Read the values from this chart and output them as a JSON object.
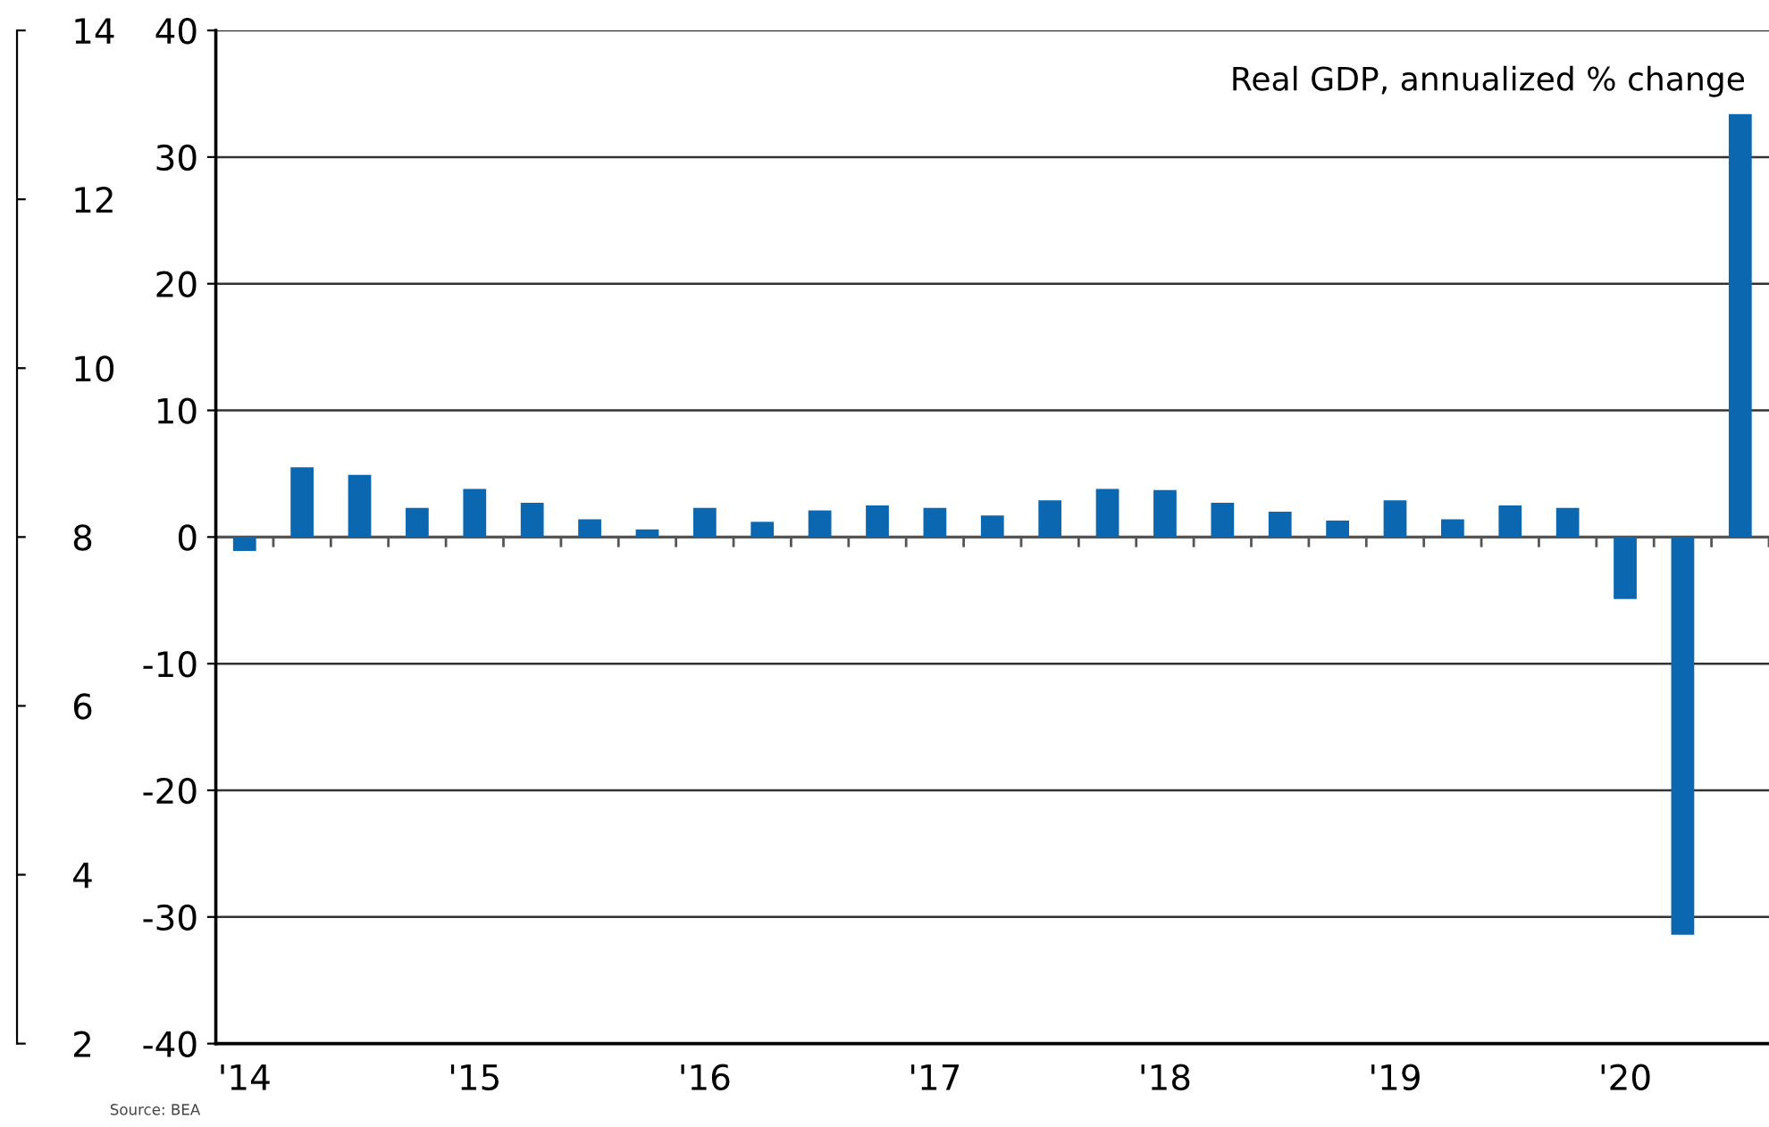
{
  "chart_data": {
    "type": "bar",
    "subtitle": "Real GDP, annualized % change",
    "categories": [
      "'14",
      null,
      null,
      null,
      "'15",
      null,
      null,
      null,
      "'16",
      null,
      null,
      null,
      "'17",
      null,
      null,
      null,
      "'18",
      null,
      null,
      null,
      "'19",
      null,
      null,
      null,
      "'20",
      null,
      null
    ],
    "values": [
      -1.1,
      5.5,
      4.9,
      2.3,
      3.8,
      2.7,
      1.4,
      0.6,
      2.3,
      1.2,
      2.1,
      2.5,
      2.3,
      1.7,
      2.9,
      3.8,
      3.7,
      2.7,
      2.0,
      1.3,
      2.9,
      1.4,
      2.5,
      2.3,
      -4.9,
      -31.4,
      33.4
    ],
    "color": "#0b68b0",
    "ylim": [
      -40,
      40
    ],
    "yticks": [
      -40,
      -30,
      -20,
      -10,
      0,
      10,
      20,
      30,
      40
    ],
    "y2lim": [
      2,
      14
    ],
    "y2ticks": [
      2,
      4,
      6,
      8,
      10,
      12,
      14
    ],
    "grid": "y",
    "annotations": [
      "Source: BEA"
    ]
  }
}
